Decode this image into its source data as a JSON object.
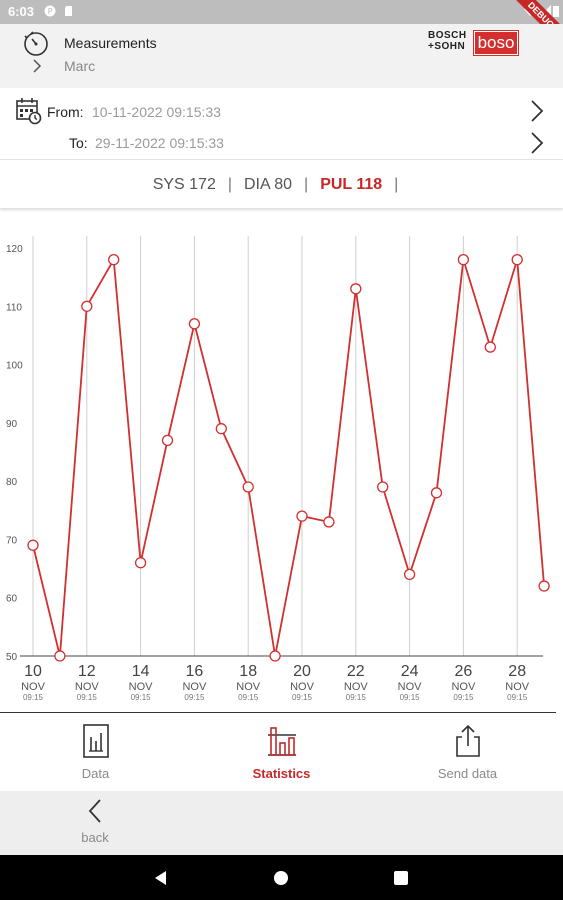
{
  "status_bar": {
    "time": "6:03",
    "debug_ribbon": "DEBUG"
  },
  "header": {
    "title": "Measurements",
    "subtitle": "Marc",
    "logo_line1": "BOSCH",
    "logo_line2": "+SOHN",
    "logo_brand": "boso"
  },
  "date_range": {
    "from_label": "From:",
    "from_value": "10-11-2022 09:15:33",
    "to_label": "To:",
    "to_value": "29-11-2022 09:15:33"
  },
  "summary": {
    "sys": "SYS 172",
    "dia": "DIA 80",
    "pul": "PUL 118",
    "separator": "|"
  },
  "chart_data": {
    "type": "line",
    "ylim": [
      50,
      120
    ],
    "yticks": [
      "120",
      "110",
      "100",
      "90",
      "80",
      "70",
      "60",
      "50"
    ],
    "x": [
      10,
      11,
      12,
      13,
      14,
      15,
      16,
      17,
      18,
      19,
      20,
      21,
      22,
      23,
      24,
      25,
      26,
      27,
      28,
      29
    ],
    "values": [
      69,
      50,
      110,
      118,
      66,
      87,
      107,
      89,
      79,
      50,
      74,
      73,
      113,
      79,
      64,
      78,
      118,
      103,
      118,
      62
    ],
    "x_tick_days": [
      "10",
      "12",
      "14",
      "16",
      "18",
      "20",
      "22",
      "24",
      "26",
      "28"
    ],
    "x_tick_month": "NOV",
    "x_tick_time": "09:15",
    "color": "#d32f2f",
    "grid": "vertical"
  },
  "tabs": [
    {
      "label": "Data",
      "icon": "data-icon",
      "active": false
    },
    {
      "label": "Statistics",
      "icon": "statistics-icon",
      "active": true
    },
    {
      "label": "Send data",
      "icon": "share-icon",
      "active": false
    }
  ],
  "back": {
    "label": "back"
  },
  "colors": {
    "accent": "#c62828",
    "line": "#d32f2f",
    "header_bg": "#f2f2f2"
  }
}
